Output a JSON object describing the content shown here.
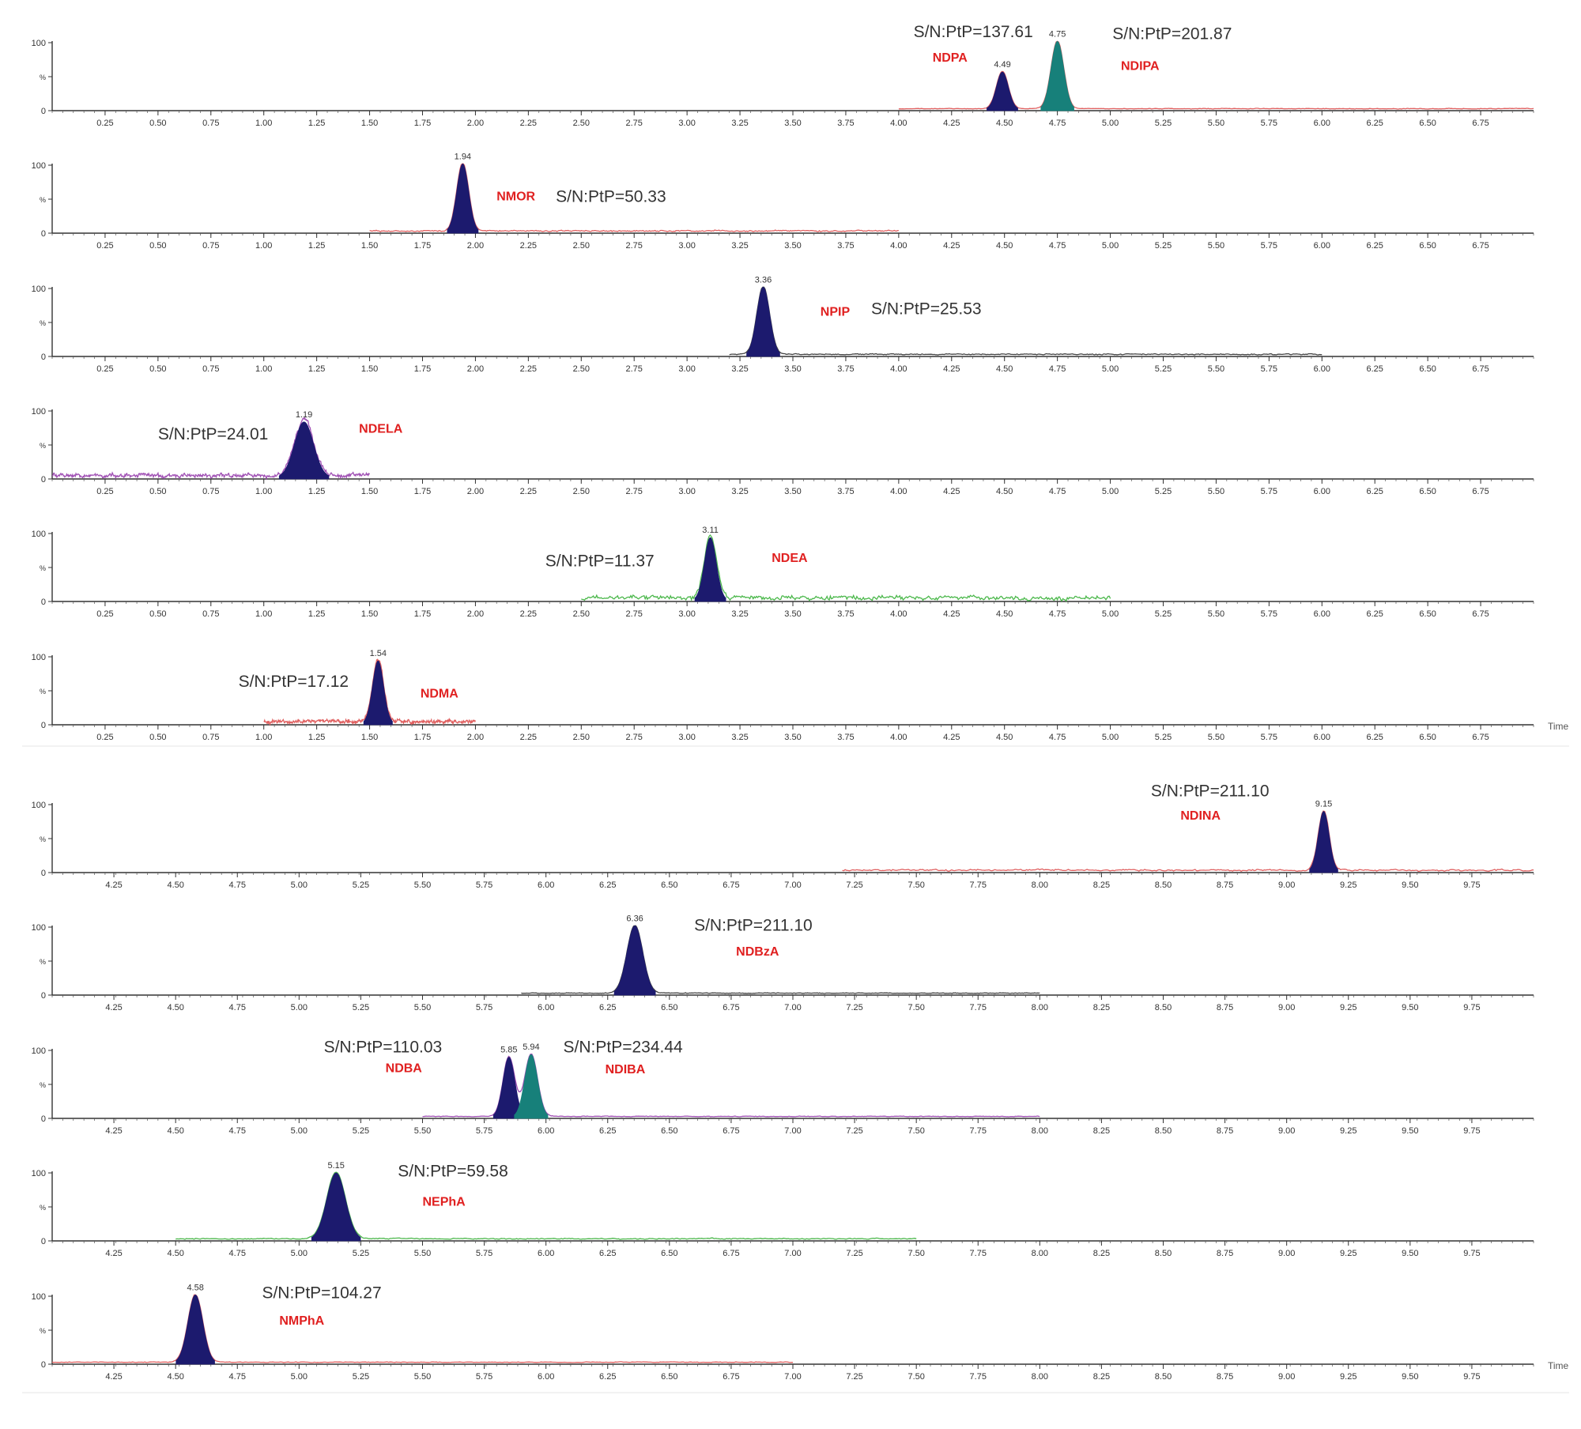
{
  "chart_data": [
    {
      "type": "line",
      "group": "upper",
      "x_range": [
        0,
        7.0
      ],
      "ticks": [
        "0.25",
        "0.50",
        "0.75",
        "1.00",
        "1.25",
        "1.50",
        "1.75",
        "2.00",
        "2.25",
        "2.50",
        "2.75",
        "3.00",
        "3.25",
        "3.50",
        "3.75",
        "4.00",
        "4.25",
        "4.50",
        "4.75",
        "5.00",
        "5.25",
        "5.50",
        "5.75",
        "6.00",
        "6.25",
        "6.50",
        "6.75"
      ],
      "y_ticks": [
        "100",
        "%",
        "0"
      ],
      "x_title": "",
      "trace_range": [
        4.0,
        7.0
      ],
      "trace_color": "#e06060",
      "noise": 0.6,
      "peaks": [
        {
          "rt": 4.49,
          "label": "4.49",
          "height": 0.55,
          "width": 0.028,
          "fill": "#1c1a6e"
        },
        {
          "rt": 4.75,
          "label": "4.75",
          "height": 1.0,
          "width": 0.03,
          "fill": "#17807a"
        }
      ],
      "annotations": [
        {
          "text": "S/N:PtP=137.61",
          "kind": "sn",
          "x": 4.07,
          "y": 1.08
        },
        {
          "text": "NDPA",
          "kind": "cmp",
          "x": 4.16,
          "y": 0.72
        },
        {
          "text": "S/N:PtP=201.87",
          "kind": "sn",
          "x": 5.01,
          "y": 1.05
        },
        {
          "text": "NDIPA",
          "kind": "cmp",
          "x": 5.05,
          "y": 0.6
        }
      ]
    },
    {
      "type": "line",
      "group": "upper",
      "x_range": [
        0,
        7.0
      ],
      "ticks": [
        "0.25",
        "0.50",
        "0.75",
        "1.00",
        "1.25",
        "1.50",
        "1.75",
        "2.00",
        "2.25",
        "2.50",
        "2.75",
        "3.00",
        "3.25",
        "3.50",
        "3.75",
        "4.00",
        "4.25",
        "4.50",
        "4.75",
        "5.00",
        "5.25",
        "5.50",
        "5.75",
        "6.00",
        "6.25",
        "6.50",
        "6.75"
      ],
      "y_ticks": [
        "100",
        "%",
        "0"
      ],
      "x_title": "",
      "trace_range": [
        1.5,
        4.0
      ],
      "trace_color": "#e06060",
      "noise": 1.2,
      "peaks": [
        {
          "rt": 1.94,
          "label": "1.94",
          "height": 1.0,
          "width": 0.028,
          "fill": "#1c1a6e"
        }
      ],
      "annotations": [
        {
          "text": "NMOR",
          "kind": "cmp",
          "x": 2.1,
          "y": 0.48
        },
        {
          "text": "S/N:PtP=50.33",
          "kind": "sn",
          "x": 2.38,
          "y": 0.46
        }
      ]
    },
    {
      "type": "line",
      "group": "upper",
      "x_range": [
        0,
        7.0
      ],
      "ticks": [
        "0.25",
        "0.50",
        "0.75",
        "1.00",
        "1.25",
        "1.50",
        "1.75",
        "2.00",
        "2.25",
        "2.50",
        "2.75",
        "3.00",
        "3.25",
        "3.50",
        "3.75",
        "4.00",
        "4.25",
        "4.50",
        "4.75",
        "5.00",
        "5.25",
        "5.50",
        "5.75",
        "6.00",
        "6.25",
        "6.50",
        "6.75"
      ],
      "y_ticks": [
        "100",
        "%",
        "0"
      ],
      "x_title": "",
      "trace_range": [
        3.2,
        6.0
      ],
      "trace_color": "#444444",
      "noise": 1.0,
      "peaks": [
        {
          "rt": 3.36,
          "label": "3.36",
          "height": 1.0,
          "width": 0.03,
          "fill": "#1c1a6e"
        }
      ],
      "annotations": [
        {
          "text": "NPIP",
          "kind": "cmp",
          "x": 3.63,
          "y": 0.6
        },
        {
          "text": "S/N:PtP=25.53",
          "kind": "sn",
          "x": 3.87,
          "y": 0.62
        }
      ]
    },
    {
      "type": "line",
      "group": "upper",
      "x_range": [
        0,
        7.0
      ],
      "ticks": [
        "0.25",
        "0.50",
        "0.75",
        "1.00",
        "1.25",
        "1.50",
        "1.75",
        "2.00",
        "2.25",
        "2.50",
        "2.75",
        "3.00",
        "3.25",
        "3.50",
        "3.75",
        "4.00",
        "4.25",
        "4.50",
        "4.75",
        "5.00",
        "5.25",
        "5.50",
        "5.75",
        "6.00",
        "6.25",
        "6.50",
        "6.75"
      ],
      "y_ticks": [
        "100",
        "%",
        "0"
      ],
      "x_title": "",
      "trace_range": [
        0,
        1.5
      ],
      "trace_color": "#a050b4",
      "noise": 4.0,
      "peaks": [
        {
          "rt": 1.19,
          "label": "1.19",
          "height": 0.82,
          "width": 0.045,
          "fill": "#1c1a6e"
        }
      ],
      "annotations": [
        {
          "text": "S/N:PtP=24.01",
          "kind": "sn",
          "x": 0.5,
          "y": 0.58
        },
        {
          "text": "NDELA",
          "kind": "cmp",
          "x": 1.45,
          "y": 0.68
        }
      ]
    },
    {
      "type": "line",
      "group": "upper",
      "x_range": [
        0,
        7.0
      ],
      "ticks": [
        "0.25",
        "0.50",
        "0.75",
        "1.00",
        "1.25",
        "1.50",
        "1.75",
        "2.00",
        "2.25",
        "2.50",
        "2.75",
        "3.00",
        "3.25",
        "3.50",
        "3.75",
        "4.00",
        "4.25",
        "4.50",
        "4.75",
        "5.00",
        "5.25",
        "5.50",
        "5.75",
        "6.00",
        "6.25",
        "6.50",
        "6.75"
      ],
      "y_ticks": [
        "100",
        "%",
        "0"
      ],
      "x_title": "",
      "trace_range": [
        2.5,
        5.0
      ],
      "trace_color": "#4cb84c",
      "noise": 4.5,
      "peaks": [
        {
          "rt": 3.11,
          "label": "3.11",
          "height": 0.92,
          "width": 0.028,
          "fill": "#1c1a6e"
        }
      ],
      "annotations": [
        {
          "text": "S/N:PtP=11.37",
          "kind": "sn",
          "x": 2.33,
          "y": 0.52
        },
        {
          "text": "NDEA",
          "kind": "cmp",
          "x": 3.4,
          "y": 0.58
        }
      ]
    },
    {
      "type": "line",
      "group": "upper",
      "x_range": [
        0,
        7.0
      ],
      "ticks": [
        "0.25",
        "0.50",
        "0.75",
        "1.00",
        "1.25",
        "1.50",
        "1.75",
        "2.00",
        "2.25",
        "2.50",
        "2.75",
        "3.00",
        "3.25",
        "3.50",
        "3.75",
        "4.00",
        "4.25",
        "4.50",
        "4.75",
        "5.00",
        "5.25",
        "5.50",
        "5.75",
        "6.00",
        "6.25",
        "6.50",
        "6.75"
      ],
      "y_ticks": [
        "100",
        "%",
        "0"
      ],
      "x_title": "Time",
      "trace_range": [
        1.0,
        2.0
      ],
      "trace_color": "#e06060",
      "noise": 3.5,
      "peaks": [
        {
          "rt": 1.54,
          "label": "1.54",
          "height": 0.92,
          "width": 0.026,
          "fill": "#1c1a6e"
        }
      ],
      "annotations": [
        {
          "text": "S/N:PtP=17.12",
          "kind": "sn",
          "x": 0.88,
          "y": 0.56
        },
        {
          "text": "NDMA",
          "kind": "cmp",
          "x": 1.74,
          "y": 0.4
        }
      ]
    },
    {
      "type": "line",
      "group": "lower",
      "x_range": [
        4.0,
        10.0
      ],
      "ticks": [
        "4.25",
        "4.50",
        "4.75",
        "5.00",
        "5.25",
        "5.50",
        "5.75",
        "6.00",
        "6.25",
        "6.50",
        "6.75",
        "7.00",
        "7.25",
        "7.50",
        "7.75",
        "8.00",
        "8.25",
        "8.50",
        "8.75",
        "9.00",
        "9.25",
        "9.50",
        "9.75"
      ],
      "y_ticks": [
        "100",
        "%",
        "0"
      ],
      "x_title": "",
      "trace_range": [
        7.2,
        10.0
      ],
      "trace_color": "#e06060",
      "noise": 1.5,
      "peaks": [
        {
          "rt": 9.15,
          "label": "9.15",
          "height": 0.88,
          "width": 0.022,
          "fill": "#1c1a6e"
        }
      ],
      "annotations": [
        {
          "text": "S/N:PtP=211.10",
          "kind": "sn",
          "x": 8.45,
          "y": 1.12
        },
        {
          "text": "NDINA",
          "kind": "cmp",
          "x": 8.57,
          "y": 0.78
        }
      ]
    },
    {
      "type": "line",
      "group": "lower",
      "x_range": [
        4.0,
        10.0
      ],
      "ticks": [
        "4.25",
        "4.50",
        "4.75",
        "5.00",
        "5.25",
        "5.50",
        "5.75",
        "6.00",
        "6.25",
        "6.50",
        "6.75",
        "7.00",
        "7.25",
        "7.50",
        "7.75",
        "8.00",
        "8.25",
        "8.50",
        "8.75",
        "9.00",
        "9.25",
        "9.50",
        "9.75"
      ],
      "y_ticks": [
        "100",
        "%",
        "0"
      ],
      "x_title": "",
      "trace_range": [
        5.9,
        8.0
      ],
      "trace_color": "#444444",
      "noise": 0.6,
      "peaks": [
        {
          "rt": 6.36,
          "label": "6.36",
          "height": 1.0,
          "width": 0.032,
          "fill": "#1c1a6e"
        }
      ],
      "annotations": [
        {
          "text": "S/N:PtP=211.10",
          "kind": "sn",
          "x": 6.6,
          "y": 0.95
        },
        {
          "text": "NDBzA",
          "kind": "cmp",
          "x": 6.77,
          "y": 0.58
        }
      ]
    },
    {
      "type": "line",
      "group": "lower",
      "x_range": [
        4.0,
        10.0
      ],
      "ticks": [
        "4.25",
        "4.50",
        "4.75",
        "5.00",
        "5.25",
        "5.50",
        "5.75",
        "6.00",
        "6.25",
        "6.50",
        "6.75",
        "7.00",
        "7.25",
        "7.50",
        "7.75",
        "8.00",
        "8.25",
        "8.50",
        "8.75",
        "9.00",
        "9.25",
        "9.50",
        "9.75"
      ],
      "y_ticks": [
        "100",
        "%",
        "0"
      ],
      "x_title": "",
      "trace_range": [
        5.5,
        8.0
      ],
      "trace_color": "#a050b4",
      "noise": 0.6,
      "peaks": [
        {
          "rt": 5.85,
          "label": "5.85",
          "height": 0.88,
          "width": 0.024,
          "fill": "#1c1a6e"
        },
        {
          "rt": 5.94,
          "label": "5.94",
          "height": 0.92,
          "width": 0.026,
          "fill": "#17807a"
        }
      ],
      "annotations": [
        {
          "text": "S/N:PtP=110.03",
          "kind": "sn",
          "x": 5.1,
          "y": 0.97
        },
        {
          "text": "NDBA",
          "kind": "cmp",
          "x": 5.35,
          "y": 0.68
        },
        {
          "text": "S/N:PtP=234.44",
          "kind": "sn",
          "x": 6.07,
          "y": 0.97
        },
        {
          "text": "NDIBA",
          "kind": "cmp",
          "x": 6.24,
          "y": 0.66
        }
      ]
    },
    {
      "type": "line",
      "group": "lower",
      "x_range": [
        4.0,
        10.0
      ],
      "ticks": [
        "4.25",
        "4.50",
        "4.75",
        "5.00",
        "5.25",
        "5.50",
        "5.75",
        "6.00",
        "6.25",
        "6.50",
        "6.75",
        "7.00",
        "7.25",
        "7.50",
        "7.75",
        "8.00",
        "8.25",
        "8.50",
        "8.75",
        "9.00",
        "9.25",
        "9.50",
        "9.75"
      ],
      "y_ticks": [
        "100",
        "%",
        "0"
      ],
      "x_title": "",
      "trace_range": [
        4.5,
        7.5
      ],
      "trace_color": "#4cb84c",
      "noise": 1.0,
      "peaks": [
        {
          "rt": 5.15,
          "label": "5.15",
          "height": 0.98,
          "width": 0.038,
          "fill": "#1c1a6e"
        }
      ],
      "annotations": [
        {
          "text": "S/N:PtP=59.58",
          "kind": "sn",
          "x": 5.4,
          "y": 0.95
        },
        {
          "text": "NEPhA",
          "kind": "cmp",
          "x": 5.5,
          "y": 0.52
        }
      ]
    },
    {
      "type": "line",
      "group": "lower",
      "x_range": [
        4.0,
        10.0
      ],
      "ticks": [
        "4.25",
        "4.50",
        "4.75",
        "5.00",
        "5.25",
        "5.50",
        "5.75",
        "6.00",
        "6.25",
        "6.50",
        "6.75",
        "7.00",
        "7.25",
        "7.50",
        "7.75",
        "8.00",
        "8.25",
        "8.50",
        "8.75",
        "9.00",
        "9.25",
        "9.50",
        "9.75"
      ],
      "y_ticks": [
        "100",
        "%",
        "0"
      ],
      "x_title": "Time",
      "trace_range": [
        4.0,
        7.0
      ],
      "trace_color": "#e06060",
      "noise": 0.6,
      "peaks": [
        {
          "rt": 4.58,
          "label": "4.58",
          "height": 1.0,
          "width": 0.03,
          "fill": "#1c1a6e"
        }
      ],
      "annotations": [
        {
          "text": "S/N:PtP=104.27",
          "kind": "sn",
          "x": 4.85,
          "y": 0.97
        },
        {
          "text": "NMPhA",
          "kind": "cmp",
          "x": 4.92,
          "y": 0.58
        }
      ]
    }
  ],
  "colors": {
    "axis": "#333333",
    "compound_label": "#e02020",
    "peak_dark": "#1c1a6e",
    "peak_teal": "#17807a"
  }
}
